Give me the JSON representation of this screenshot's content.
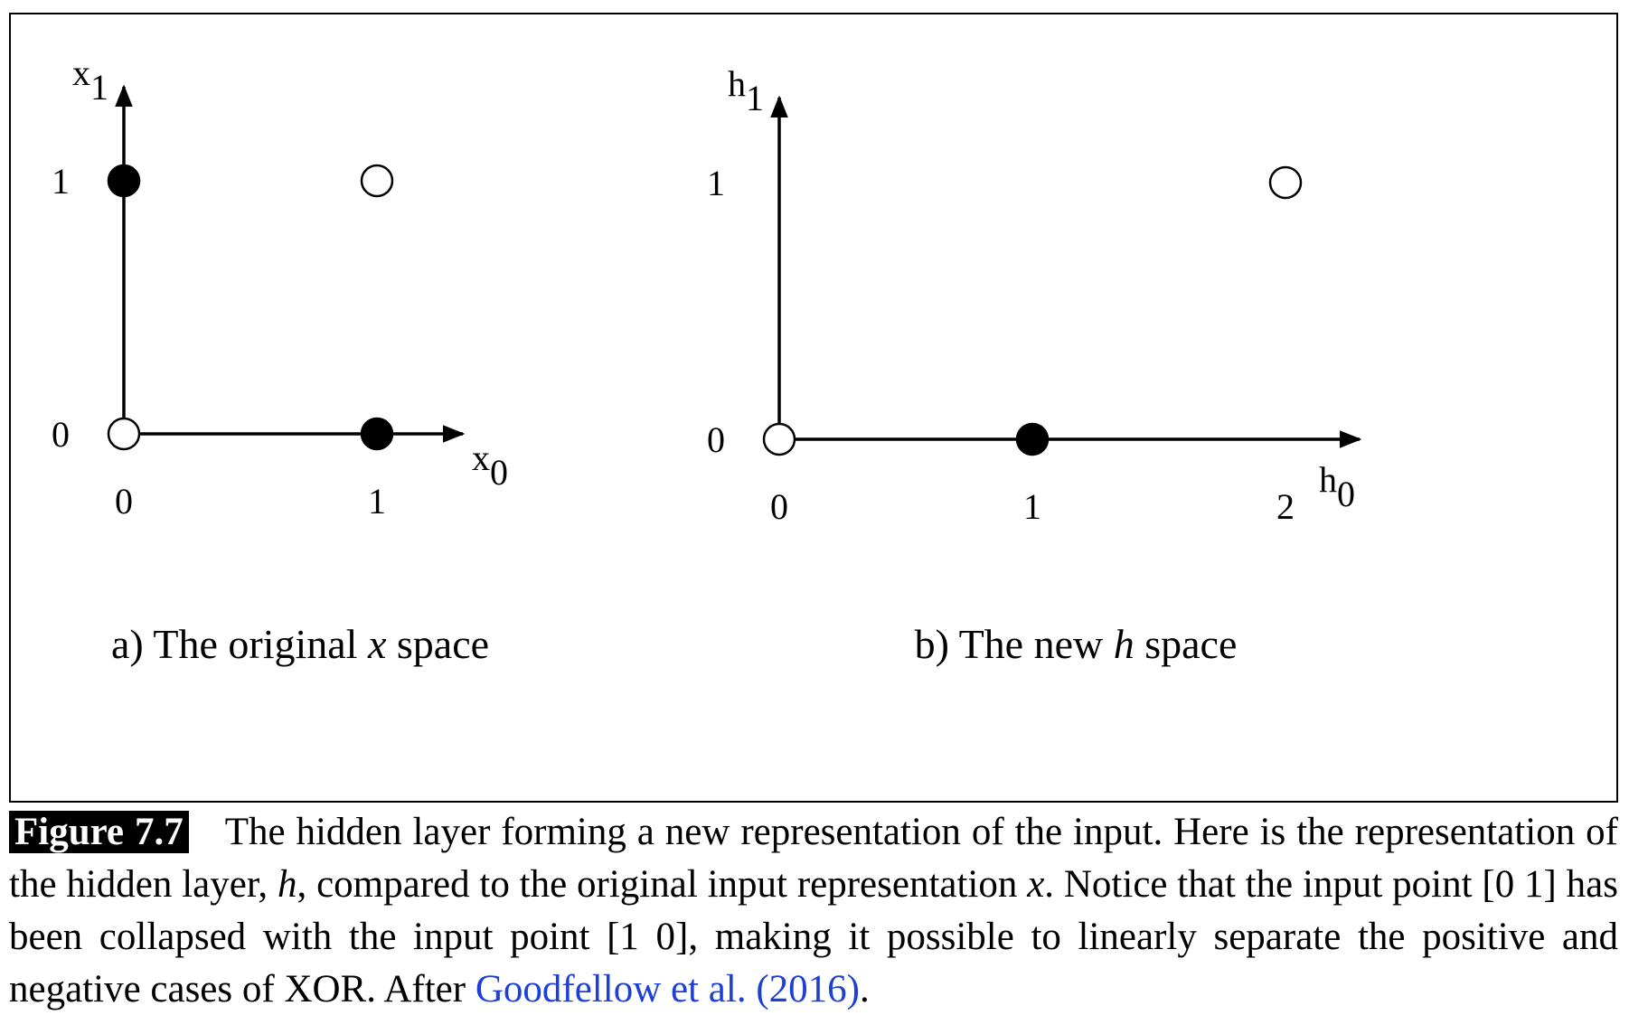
{
  "chart_data": [
    {
      "type": "scatter",
      "panel": "a",
      "title_prefix": "a) The original ",
      "title_var": "x",
      "title_suffix": " space",
      "xlabel": "x",
      "xlabel_sub": "0",
      "ylabel": "x",
      "ylabel_sub": "1",
      "x_ticks": [
        "0",
        "1"
      ],
      "y_ticks": [
        "0",
        "1"
      ],
      "xlim": [
        0,
        1
      ],
      "ylim": [
        0,
        1
      ],
      "points": [
        {
          "x": 0,
          "y": 0,
          "filled": false
        },
        {
          "x": 1,
          "y": 0,
          "filled": true
        },
        {
          "x": 0,
          "y": 1,
          "filled": true
        },
        {
          "x": 1,
          "y": 1,
          "filled": false
        }
      ]
    },
    {
      "type": "scatter",
      "panel": "b",
      "title_prefix": "b) The new ",
      "title_var": "h",
      "title_suffix": " space",
      "xlabel": "h",
      "xlabel_sub": "0",
      "ylabel": "h",
      "ylabel_sub": "1",
      "x_ticks": [
        "0",
        "1",
        "2"
      ],
      "y_ticks": [
        "0",
        "1"
      ],
      "xlim": [
        0,
        2
      ],
      "ylim": [
        0,
        1
      ],
      "points": [
        {
          "x": 0,
          "y": 0,
          "filled": false
        },
        {
          "x": 1,
          "y": 0,
          "filled": true
        },
        {
          "x": 2,
          "y": 1,
          "filled": false
        }
      ]
    }
  ],
  "caption": {
    "label": "Figure 7.7",
    "part1": "The hidden layer forming a new representation of the input. Here is the representation of the hidden layer, ",
    "var_h": "h",
    "part2": ", compared to the original input representation ",
    "var_x": "x",
    "part3": ". Notice that the input point [0 1] has been collapsed with the input point [1 0], making it possible to linearly separate the positive and negative cases of XOR. After ",
    "citation": "Goodfellow et al. (2016)",
    "end": "."
  }
}
